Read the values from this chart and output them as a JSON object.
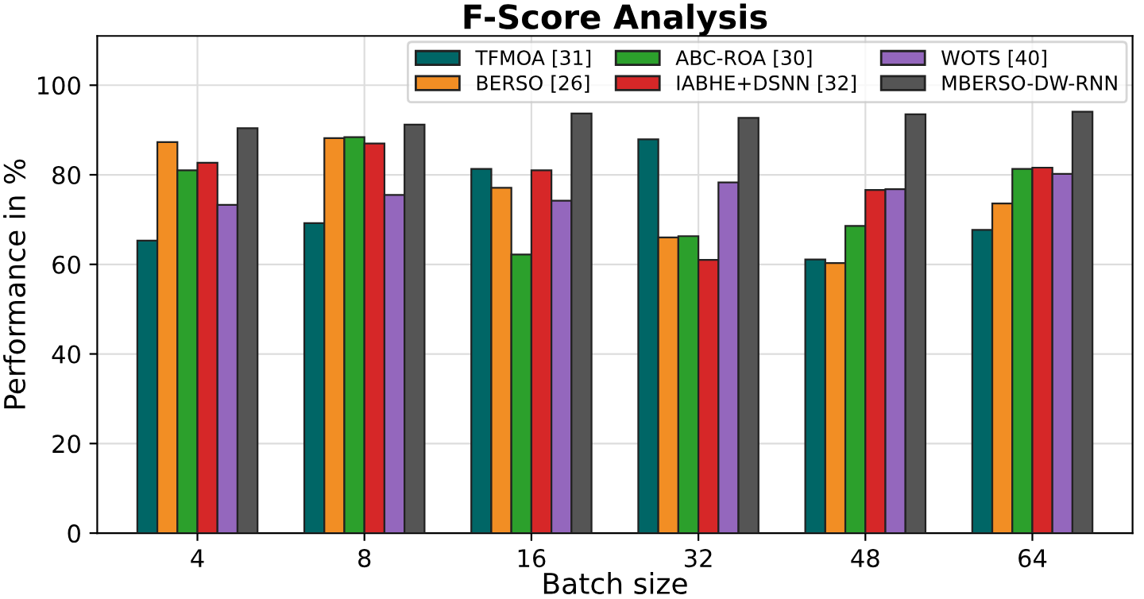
{
  "chart_data": {
    "type": "bar",
    "title": "F-Score Analysis",
    "xlabel": "Batch size",
    "ylabel": "Performance in %",
    "categories": [
      "4",
      "8",
      "16",
      "32",
      "48",
      "64"
    ],
    "series": [
      {
        "name": "TFMOA [31]",
        "color": "#006666",
        "values": [
          65.3,
          69.2,
          81.3,
          87.9,
          61.1,
          67.7
        ]
      },
      {
        "name": "BERSO [26]",
        "color": "#f28e24",
        "values": [
          87.3,
          88.2,
          77.1,
          66.0,
          60.3,
          73.6
        ]
      },
      {
        "name": "ABC-ROA [30]",
        "color": "#2ca02c",
        "values": [
          81.0,
          88.4,
          62.2,
          66.3,
          68.6,
          81.3
        ]
      },
      {
        "name": "IABHE+DSNN [32]",
        "color": "#d62728",
        "values": [
          82.7,
          87.0,
          81.0,
          61.0,
          76.6,
          81.6
        ]
      },
      {
        "name": "WOTS [40]",
        "color": "#9467bd",
        "values": [
          73.3,
          75.5,
          74.2,
          78.3,
          76.8,
          80.2
        ]
      },
      {
        "name": "MBERSO-DW-RNN",
        "color": "#555555",
        "values": [
          90.4,
          91.2,
          93.7,
          92.7,
          93.5,
          94.1
        ]
      }
    ],
    "ylim": [
      0,
      111
    ],
    "yticks": [
      0,
      20,
      40,
      60,
      80,
      100
    ],
    "grid": true,
    "legend": "top right"
  }
}
